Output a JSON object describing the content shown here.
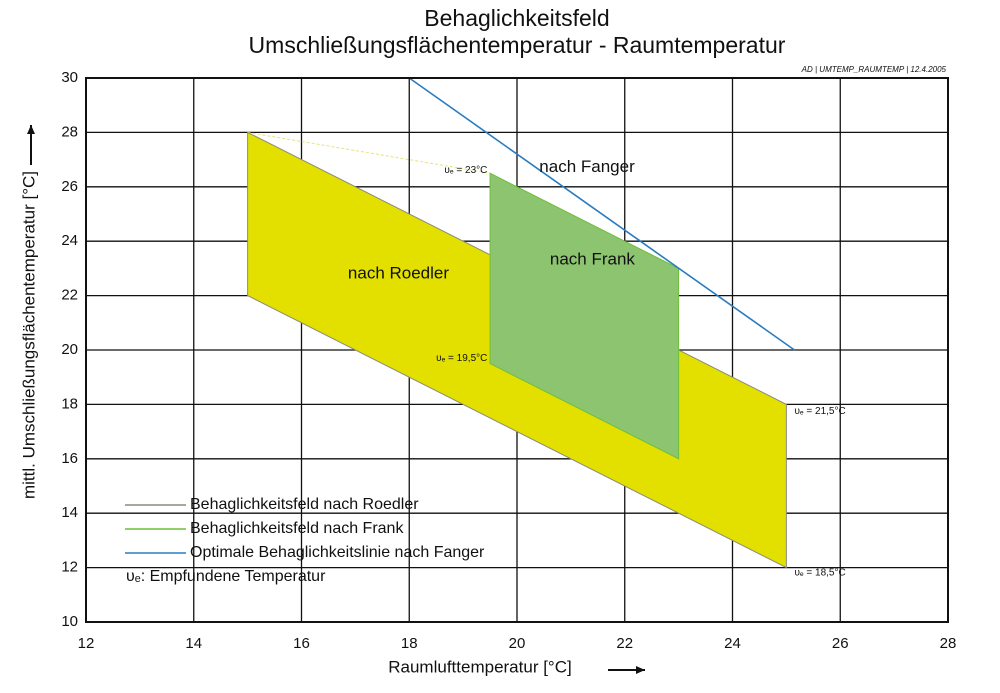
{
  "chart_data": {
    "type": "area",
    "title": "Behaglichkeitsfeld",
    "subtitle": "Umschließungsflächentemperatur - Raumtemperatur",
    "stamp": "AD | UMTEMP_RAUMTEMP | 12.4.2005",
    "x_label": "Raumlufttemperatur [°C]",
    "y_label": "mittl. Umschließungsflächentemperatur [°C]",
    "xlim": [
      12,
      28
    ],
    "ylim": [
      10,
      30
    ],
    "xticks": [
      12,
      14,
      16,
      18,
      20,
      22,
      24,
      26,
      28
    ],
    "yticks": [
      10,
      12,
      14,
      16,
      18,
      20,
      22,
      24,
      26,
      28,
      30
    ],
    "grid": true,
    "series": [
      {
        "name": "Behaglichkeitsfeld nach Roedler",
        "label": "nach Roedler",
        "color": "#8a8a7a",
        "fill": "#e3e000",
        "x": [
          15,
          15,
          25,
          25
        ],
        "values": [
          28,
          22,
          12,
          18
        ]
      },
      {
        "name": "Behaglichkeitsfeld nach Frank",
        "label": "nach Frank",
        "color": "#6fbf3a",
        "fill": "#8cc46f",
        "x": [
          19.5,
          19.5,
          23,
          23
        ],
        "values": [
          26.5,
          19.5,
          16,
          23
        ]
      },
      {
        "name": "Optimale Behaglichkeitslinie nach Fanger",
        "label": "nach Fanger",
        "color": "#2a7cc0",
        "fill": null,
        "x": [
          18,
          25.15
        ],
        "values": [
          30,
          20
        ]
      }
    ],
    "annotations": [
      "υₑ = 23°C",
      "υₑ = 19,5°C",
      "υₑ = 21,5°C",
      "υₑ = 18,5°C"
    ],
    "legend_note": "υₑ: Empfundene Temperatur"
  }
}
